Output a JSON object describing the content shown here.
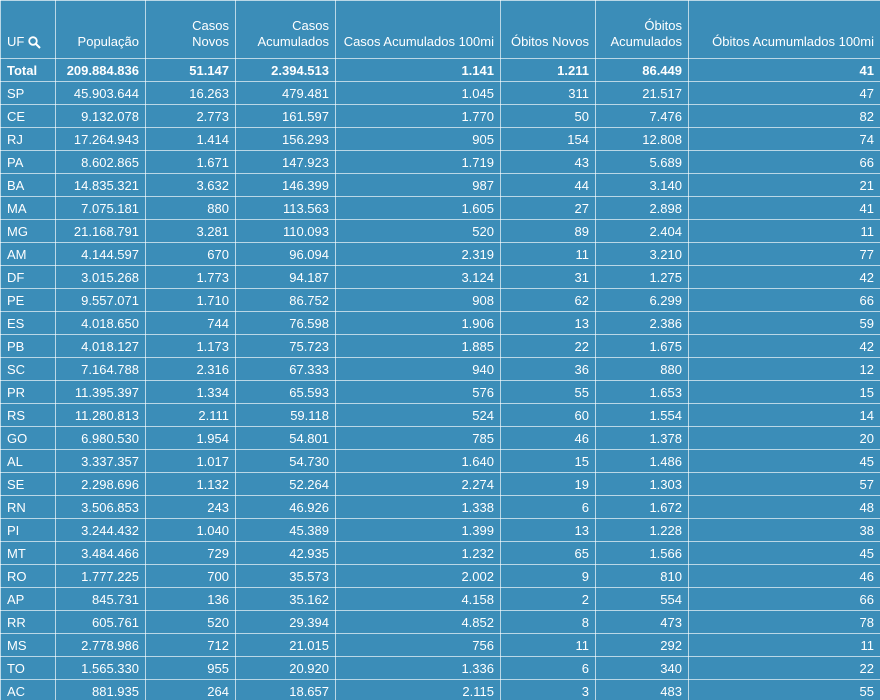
{
  "table": {
    "columns": [
      "UF",
      "População",
      "Casos Novos",
      "Casos Acumulados",
      "Casos Acumulados 100mi",
      "Óbitos Novos",
      "Óbitos Acumulados",
      "Óbitos Acumumlados 100mi"
    ],
    "total": [
      "Total",
      "209.884.836",
      "51.147",
      "2.394.513",
      "1.141",
      "1.211",
      "86.449",
      "41"
    ],
    "rows": [
      [
        "SP",
        "45.903.644",
        "16.263",
        "479.481",
        "1.045",
        "311",
        "21.517",
        "47"
      ],
      [
        "CE",
        "9.132.078",
        "2.773",
        "161.597",
        "1.770",
        "50",
        "7.476",
        "82"
      ],
      [
        "RJ",
        "17.264.943",
        "1.414",
        "156.293",
        "905",
        "154",
        "12.808",
        "74"
      ],
      [
        "PA",
        "8.602.865",
        "1.671",
        "147.923",
        "1.719",
        "43",
        "5.689",
        "66"
      ],
      [
        "BA",
        "14.835.321",
        "3.632",
        "146.399",
        "987",
        "44",
        "3.140",
        "21"
      ],
      [
        "MA",
        "7.075.181",
        "880",
        "113.563",
        "1.605",
        "27",
        "2.898",
        "41"
      ],
      [
        "MG",
        "21.168.791",
        "3.281",
        "110.093",
        "520",
        "89",
        "2.404",
        "11"
      ],
      [
        "AM",
        "4.144.597",
        "670",
        "96.094",
        "2.319",
        "11",
        "3.210",
        "77"
      ],
      [
        "DF",
        "3.015.268",
        "1.773",
        "94.187",
        "3.124",
        "31",
        "1.275",
        "42"
      ],
      [
        "PE",
        "9.557.071",
        "1.710",
        "86.752",
        "908",
        "62",
        "6.299",
        "66"
      ],
      [
        "ES",
        "4.018.650",
        "744",
        "76.598",
        "1.906",
        "13",
        "2.386",
        "59"
      ],
      [
        "PB",
        "4.018.127",
        "1.173",
        "75.723",
        "1.885",
        "22",
        "1.675",
        "42"
      ],
      [
        "SC",
        "7.164.788",
        "2.316",
        "67.333",
        "940",
        "36",
        "880",
        "12"
      ],
      [
        "PR",
        "11.395.397",
        "1.334",
        "65.593",
        "576",
        "55",
        "1.653",
        "15"
      ],
      [
        "RS",
        "11.280.813",
        "2.111",
        "59.118",
        "524",
        "60",
        "1.554",
        "14"
      ],
      [
        "GO",
        "6.980.530",
        "1.954",
        "54.801",
        "785",
        "46",
        "1.378",
        "20"
      ],
      [
        "AL",
        "3.337.357",
        "1.017",
        "54.730",
        "1.640",
        "15",
        "1.486",
        "45"
      ],
      [
        "SE",
        "2.298.696",
        "1.132",
        "52.264",
        "2.274",
        "19",
        "1.303",
        "57"
      ],
      [
        "RN",
        "3.506.853",
        "243",
        "46.926",
        "1.338",
        "6",
        "1.672",
        "48"
      ],
      [
        "PI",
        "3.244.432",
        "1.040",
        "45.389",
        "1.399",
        "13",
        "1.228",
        "38"
      ],
      [
        "MT",
        "3.484.466",
        "729",
        "42.935",
        "1.232",
        "65",
        "1.566",
        "45"
      ],
      [
        "RO",
        "1.777.225",
        "700",
        "35.573",
        "2.002",
        "9",
        "810",
        "46"
      ],
      [
        "AP",
        "845.731",
        "136",
        "35.162",
        "4.158",
        "2",
        "554",
        "66"
      ],
      [
        "RR",
        "605.761",
        "520",
        "29.394",
        "4.852",
        "8",
        "473",
        "78"
      ],
      [
        "MS",
        "2.778.986",
        "712",
        "21.015",
        "756",
        "11",
        "292",
        "11"
      ],
      [
        "TO",
        "1.565.330",
        "955",
        "20.920",
        "1.336",
        "6",
        "340",
        "22"
      ],
      [
        "AC",
        "881.935",
        "264",
        "18.657",
        "2.115",
        "3",
        "483",
        "55"
      ]
    ]
  }
}
